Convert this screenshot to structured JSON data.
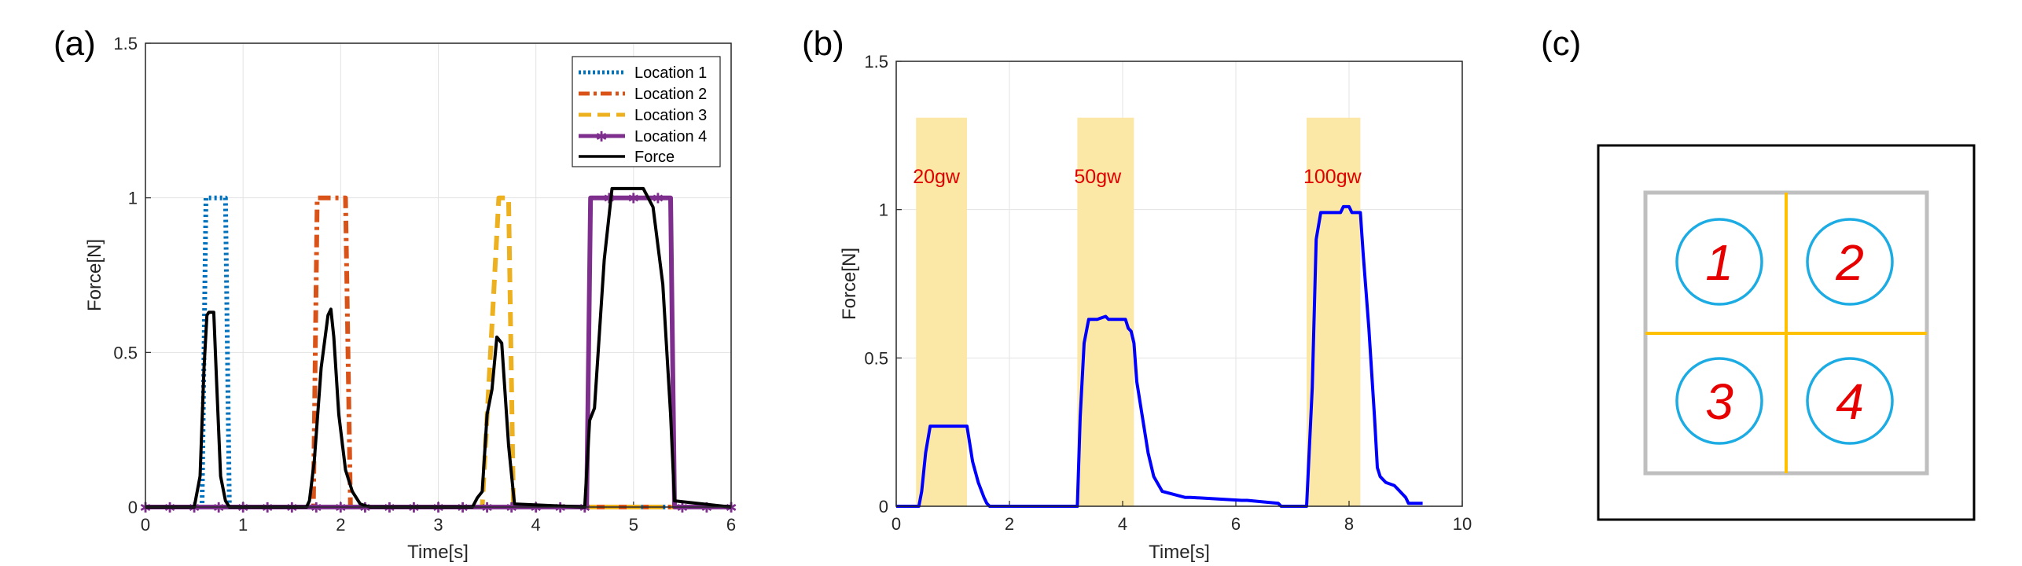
{
  "chart_data": [
    {
      "type": "line",
      "panel_label": "(a)",
      "xlabel": "Time[s]",
      "ylabel": "Force[N]",
      "xlim": [
        0,
        6
      ],
      "ylim": [
        0,
        1.5
      ],
      "xticks": [
        0,
        1,
        2,
        3,
        4,
        5,
        6
      ],
      "yticks": [
        0,
        0.5,
        1,
        1.5
      ],
      "xtick_labels": [
        "0",
        "1",
        "2",
        "3",
        "4",
        "5",
        "6"
      ],
      "ytick_labels": [
        "0",
        "0.5",
        "1",
        "1.5"
      ],
      "grid": true,
      "legend_position": "top-right",
      "series": [
        {
          "name": "Location 1",
          "color": "#0072BD",
          "style": "dotted",
          "x": [
            0,
            0.58,
            0.62,
            0.82,
            0.86,
            6
          ],
          "y": [
            0,
            0,
            1.0,
            1.0,
            0,
            0
          ]
        },
        {
          "name": "Location 2",
          "color": "#D95319",
          "style": "dashdot",
          "x": [
            0,
            1.72,
            1.76,
            2.05,
            2.1,
            6
          ],
          "y": [
            0,
            0,
            1.0,
            1.0,
            0,
            0
          ]
        },
        {
          "name": "Location 3",
          "color": "#EDB120",
          "style": "dashed",
          "x": [
            0,
            3.45,
            3.62,
            3.72,
            3.77,
            6
          ],
          "y": [
            0,
            0,
            1.0,
            1.0,
            0,
            0
          ]
        },
        {
          "name": "Location 4",
          "color": "#7E2F8E",
          "style": "solid-marker",
          "x": [
            0,
            4.52,
            4.56,
            5.38,
            5.42,
            6
          ],
          "y": [
            0,
            0,
            1.0,
            1.0,
            0,
            0
          ]
        },
        {
          "name": "Force",
          "color": "#000000",
          "style": "solid",
          "x": [
            0,
            0.5,
            0.56,
            0.6,
            0.63,
            0.65,
            0.7,
            0.73,
            0.77,
            0.82,
            0.86,
            1.65,
            1.68,
            1.73,
            1.8,
            1.87,
            1.9,
            1.93,
            1.98,
            2.05,
            2.12,
            2.2,
            2.3,
            3.35,
            3.4,
            3.45,
            3.5,
            3.55,
            3.6,
            3.65,
            3.72,
            3.78,
            4.5,
            4.55,
            4.6,
            4.7,
            4.78,
            5.1,
            5.2,
            5.3,
            5.38,
            5.42,
            6
          ],
          "y": [
            0,
            0,
            0.1,
            0.45,
            0.62,
            0.63,
            0.63,
            0.4,
            0.1,
            0.02,
            0,
            0,
            0.02,
            0.15,
            0.45,
            0.62,
            0.64,
            0.55,
            0.3,
            0.12,
            0.05,
            0.01,
            0,
            0,
            0.03,
            0.05,
            0.3,
            0.38,
            0.55,
            0.53,
            0.2,
            0.01,
            0,
            0.28,
            0.32,
            0.8,
            1.03,
            1.03,
            0.97,
            0.72,
            0.3,
            0.02,
            0
          ]
        }
      ]
    },
    {
      "type": "line",
      "panel_label": "(b)",
      "xlabel": "Time[s]",
      "ylabel": "Force[N]",
      "xlim": [
        0,
        10
      ],
      "ylim": [
        0,
        1.5
      ],
      "xticks": [
        0,
        2,
        4,
        6,
        8,
        10
      ],
      "yticks": [
        0,
        0.5,
        1,
        1.5
      ],
      "xtick_labels": [
        "0",
        "2",
        "4",
        "6",
        "8",
        "10"
      ],
      "ytick_labels": [
        "0",
        "0.5",
        "1",
        "1.5"
      ],
      "grid": true,
      "shaded_regions": [
        {
          "x0": 0.35,
          "x1": 1.25,
          "y_top": 1.31,
          "label": "20gw"
        },
        {
          "x0": 3.2,
          "x1": 4.2,
          "y_top": 1.31,
          "label": "50gw"
        },
        {
          "x0": 7.25,
          "x1": 8.2,
          "y_top": 1.31,
          "label": "100gw"
        }
      ],
      "series": [
        {
          "name": "Force",
          "color": "#0000FF",
          "x": [
            0,
            0.4,
            0.45,
            0.52,
            0.6,
            1.25,
            1.35,
            1.45,
            1.55,
            1.6,
            1.65,
            3.2,
            3.25,
            3.32,
            3.4,
            3.55,
            3.7,
            3.75,
            4.05,
            4.1,
            4.15,
            4.2,
            4.25,
            4.35,
            4.45,
            4.55,
            4.7,
            5.1,
            5.2,
            6.1,
            6.2,
            6.75,
            6.8,
            7.25,
            7.35,
            7.42,
            7.5,
            7.85,
            7.9,
            8.0,
            8.05,
            8.2,
            8.25,
            8.35,
            8.45,
            8.5,
            8.55,
            8.65,
            8.8,
            8.9,
            9.0,
            9.05,
            9.3
          ],
          "y": [
            0,
            0,
            0.05,
            0.18,
            0.27,
            0.27,
            0.15,
            0.08,
            0.03,
            0.01,
            0,
            0,
            0.3,
            0.55,
            0.63,
            0.63,
            0.64,
            0.63,
            0.63,
            0.6,
            0.59,
            0.55,
            0.42,
            0.3,
            0.18,
            0.1,
            0.05,
            0.03,
            0.03,
            0.02,
            0.02,
            0.01,
            0,
            0,
            0.4,
            0.9,
            0.99,
            0.99,
            1.01,
            1.01,
            0.99,
            0.99,
            0.85,
            0.6,
            0.3,
            0.13,
            0.1,
            0.08,
            0.07,
            0.05,
            0.03,
            0.01,
            0.01
          ]
        }
      ]
    }
  ],
  "panel_c": {
    "label": "(c)",
    "cells": [
      "1",
      "2",
      "3",
      "4"
    ]
  }
}
